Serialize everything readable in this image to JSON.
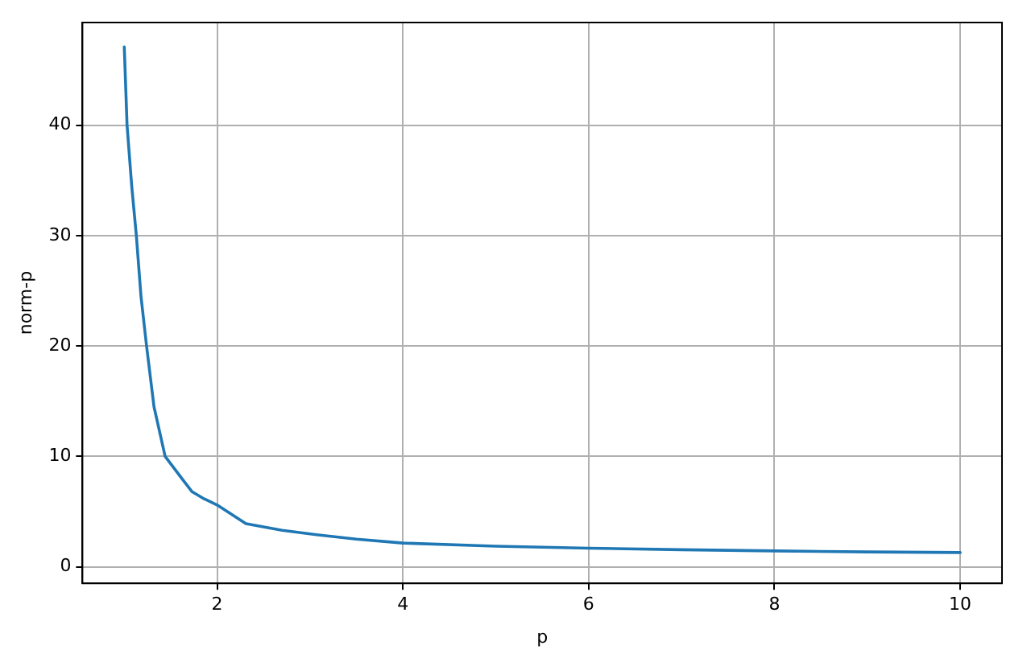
{
  "chart_data": {
    "type": "line",
    "xlabel": "p",
    "ylabel": "norm-p",
    "x": [
      1,
      1.03,
      1.08,
      1.13,
      1.18,
      1.24,
      1.32,
      1.44,
      1.53,
      1.62,
      1.73,
      1.85,
      2,
      2.31,
      2.7,
      3.07,
      3.5,
      4,
      5,
      6,
      7,
      8,
      9,
      10
    ],
    "series": [
      {
        "color": "#1f77b4",
        "values": [
          47.1,
          40,
          34.5,
          30,
          24.5,
          20,
          14.5,
          10,
          9,
          8,
          6.8,
          6.2,
          5.6,
          3.9,
          3.3,
          2.9,
          2.5,
          2.15,
          1.87,
          1.68,
          1.55,
          1.44,
          1.35,
          1.29
        ]
      }
    ],
    "xlim": [
      0.55,
      10.45
    ],
    "xticks": [
      2,
      4,
      6,
      8,
      10
    ],
    "ylim": [
      -1.5,
      49.3
    ],
    "yticks": [
      0,
      10,
      20,
      30,
      40
    ],
    "grid": true,
    "marker": "none",
    "line_style": "solid"
  }
}
